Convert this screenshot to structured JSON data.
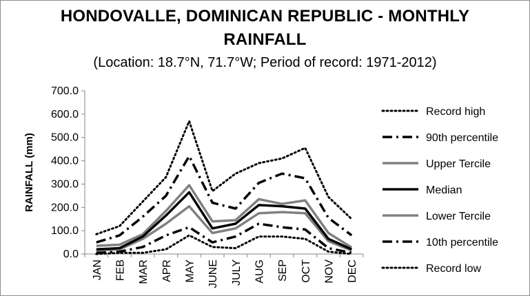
{
  "chart_data": {
    "type": "line",
    "title": "HONDOVALLE, DOMINICAN REPUBLIC - MONTHLY RAINFALL",
    "title_lines": [
      "HONDOVALLE, DOMINICAN REPUBLIC - MONTHLY",
      "RAINFALL"
    ],
    "subtitle": "(Location: 18.7°N, 71.7°W; Period of record: 1971-2012)",
    "xlabel": "",
    "ylabel": "RAINFALL (mm)",
    "ylim": [
      0,
      700
    ],
    "yticks": [
      "0.0",
      "100.0",
      "200.0",
      "300.0",
      "400.0",
      "500.0",
      "600.0",
      "700.0"
    ],
    "categories": [
      "JAN",
      "FEB",
      "MAR",
      "APR",
      "MAY",
      "JUNE",
      "JULY",
      "AUG",
      "SEP",
      "OCT",
      "NOV",
      "DEC"
    ],
    "grid": false,
    "legend": "right",
    "series": [
      {
        "name": "Record high",
        "style": "dotted",
        "color": "#000000",
        "values": [
          85,
          120,
          225,
          330,
          570,
          270,
          345,
          390,
          410,
          455,
          245,
          150
        ]
      },
      {
        "name": "90th percentile",
        "style": "dashdot",
        "color": "#000000",
        "values": [
          50,
          80,
          160,
          250,
          420,
          220,
          195,
          305,
          345,
          325,
          155,
          80
        ]
      },
      {
        "name": "Upper Tercile",
        "style": "solid-gray",
        "color": "#808080",
        "values": [
          35,
          40,
          85,
          185,
          295,
          140,
          145,
          235,
          215,
          230,
          90,
          28
        ]
      },
      {
        "name": "Median",
        "style": "solid-black",
        "color": "#000000",
        "values": [
          20,
          25,
          75,
          165,
          265,
          110,
          130,
          210,
          205,
          195,
          65,
          20
        ]
      },
      {
        "name": "Lower Tercile",
        "style": "solid-gray",
        "color": "#808080",
        "values": [
          15,
          20,
          65,
          130,
          205,
          90,
          110,
          175,
          180,
          175,
          55,
          15
        ]
      },
      {
        "name": "10th percentile",
        "style": "dashdot",
        "color": "#000000",
        "values": [
          5,
          10,
          30,
          80,
          115,
          50,
          75,
          130,
          115,
          105,
          25,
          5
        ]
      },
      {
        "name": "Record low",
        "style": "dotted",
        "color": "#000000",
        "values": [
          0,
          5,
          5,
          20,
          80,
          30,
          25,
          75,
          75,
          65,
          10,
          0
        ]
      }
    ]
  }
}
